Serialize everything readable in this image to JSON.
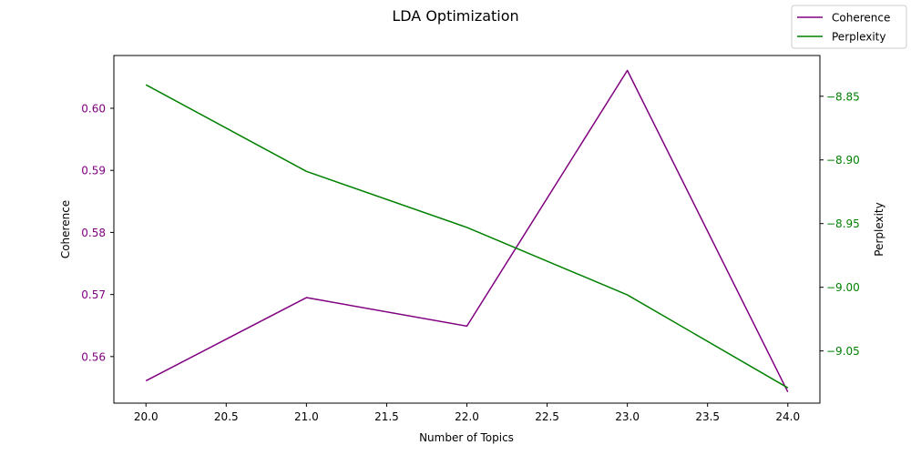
{
  "chart_data": {
    "type": "line",
    "title": "LDA Optimization",
    "xlabel": "Number of Topics",
    "x": [
      20,
      21,
      22,
      23,
      24
    ],
    "xlim": [
      19.8,
      24.2
    ],
    "xticks": [
      20.0,
      20.5,
      21.0,
      21.5,
      22.0,
      22.5,
      23.0,
      23.5,
      24.0
    ],
    "xtick_labels": [
      "20.0",
      "20.5",
      "21.0",
      "21.5",
      "22.0",
      "22.5",
      "23.0",
      "23.5",
      "24.0"
    ],
    "y_left": {
      "label": "Coherence",
      "color": "#800080",
      "lim": [
        0.5525,
        0.6085
      ],
      "ticks": [
        0.56,
        0.57,
        0.58,
        0.59,
        0.6
      ],
      "tick_labels": [
        "0.56",
        "0.57",
        "0.58",
        "0.59",
        "0.60"
      ]
    },
    "y_right": {
      "label": "Perplexity",
      "color": "#008000",
      "lim": [
        -9.091,
        -8.818
      ],
      "ticks": [
        -9.05,
        -9.0,
        -8.95,
        -8.9,
        -8.85
      ],
      "tick_labels": [
        "−9.05",
        "−9.00",
        "−8.95",
        "−8.90",
        "−8.85"
      ]
    },
    "series": [
      {
        "name": "Coherence",
        "axis": "left",
        "color": "#800080",
        "values": [
          0.5561,
          0.5695,
          0.5649,
          0.6061,
          0.5543
        ]
      },
      {
        "name": "Perplexity",
        "axis": "right",
        "color": "#008000",
        "values": [
          -8.841,
          -8.909,
          -8.953,
          -9.006,
          -9.079
        ]
      }
    ],
    "legend": {
      "placement": "top-right",
      "entries": [
        "Coherence",
        "Perplexity"
      ]
    },
    "grid": false
  }
}
